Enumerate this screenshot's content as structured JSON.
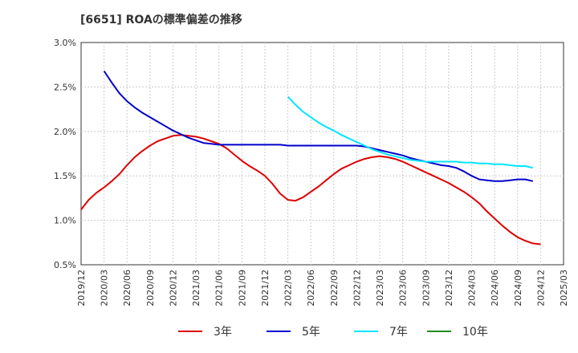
{
  "chart_data": {
    "type": "line",
    "title": "[6651]  ROAの標準偏差の推移",
    "xlabel": "",
    "ylabel": "",
    "ylim": [
      0.5,
      3.0
    ],
    "y_ticks": [
      "0.5%",
      "1.0%",
      "1.5%",
      "2.0%",
      "2.5%",
      "3.0%"
    ],
    "y_tick_values": [
      0.5,
      1.0,
      1.5,
      2.0,
      2.5,
      3.0
    ],
    "x_ticks": [
      "2019/12",
      "2020/03",
      "2020/06",
      "2020/09",
      "2020/12",
      "2021/03",
      "2021/06",
      "2021/09",
      "2021/12",
      "2022/03",
      "2022/06",
      "2022/09",
      "2022/12",
      "2023/03",
      "2023/06",
      "2023/09",
      "2023/12",
      "2024/03",
      "2024/06",
      "2024/09",
      "2024/12",
      "2025/03"
    ],
    "grid": true,
    "legend_position": "bottom",
    "series": [
      {
        "name": "3年",
        "color": "#dd0000",
        "start": "2019/12",
        "values": [
          1.12,
          1.23,
          1.31,
          1.37,
          1.44,
          1.52,
          1.62,
          1.71,
          1.78,
          1.84,
          1.89,
          1.92,
          1.95,
          1.96,
          1.95,
          1.94,
          1.92,
          1.89,
          1.86,
          1.81,
          1.74,
          1.67,
          1.61,
          1.56,
          1.5,
          1.41,
          1.3,
          1.23,
          1.22,
          1.26,
          1.32,
          1.38,
          1.45,
          1.52,
          1.58,
          1.62,
          1.66,
          1.69,
          1.71,
          1.72,
          1.71,
          1.69,
          1.66,
          1.62,
          1.58,
          1.54,
          1.5,
          1.46,
          1.42,
          1.37,
          1.32,
          1.26,
          1.19,
          1.1,
          1.02,
          0.94,
          0.87,
          0.81,
          0.77,
          0.74,
          0.73
        ]
      },
      {
        "name": "5年",
        "color": "#0000cc",
        "start": "2020/03",
        "values": [
          2.68,
          2.55,
          2.43,
          2.34,
          2.27,
          2.21,
          2.16,
          2.11,
          2.06,
          2.01,
          1.97,
          1.93,
          1.9,
          1.87,
          1.86,
          1.85,
          1.85,
          1.85,
          1.85,
          1.85,
          1.85,
          1.85,
          1.85,
          1.85,
          1.84,
          1.84,
          1.84,
          1.84,
          1.84,
          1.84,
          1.84,
          1.84,
          1.84,
          1.84,
          1.83,
          1.81,
          1.79,
          1.77,
          1.75,
          1.73,
          1.7,
          1.68,
          1.66,
          1.64,
          1.62,
          1.61,
          1.59,
          1.55,
          1.5,
          1.46,
          1.45,
          1.44,
          1.44,
          1.45,
          1.46,
          1.46,
          1.44
        ]
      },
      {
        "name": "7年",
        "color": "#00e5ff",
        "start": "2022/03",
        "values": [
          2.39,
          2.3,
          2.22,
          2.16,
          2.1,
          2.05,
          2.01,
          1.96,
          1.92,
          1.88,
          1.84,
          1.8,
          1.77,
          1.74,
          1.72,
          1.7,
          1.68,
          1.67,
          1.66,
          1.66,
          1.66,
          1.66,
          1.66,
          1.65,
          1.65,
          1.64,
          1.64,
          1.63,
          1.63,
          1.62,
          1.61,
          1.61,
          1.59
        ]
      },
      {
        "name": "10年",
        "color": "#228b22",
        "start": "2024/12",
        "values": []
      }
    ]
  }
}
